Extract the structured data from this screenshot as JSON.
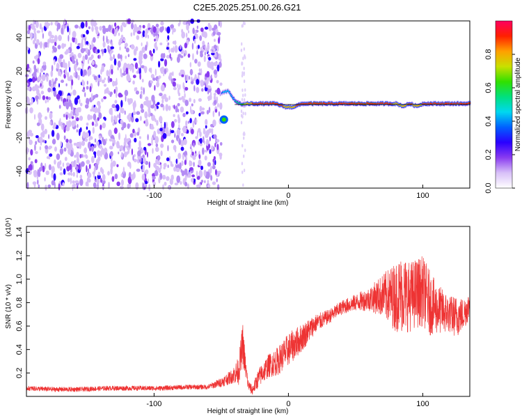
{
  "title": "C2E5.2025.251.00.26.G21",
  "chart_data": [
    {
      "type": "heatmap",
      "name": "spectrogram",
      "xlabel": "Height of straight line (km)",
      "ylabel": "Frequency (Hz)",
      "xlim": [
        -195,
        135
      ],
      "ylim": [
        -50,
        50
      ],
      "xticks": [
        -100,
        0,
        100
      ],
      "yticks": [
        -40,
        -20,
        0,
        20,
        40
      ],
      "colorbar": {
        "label": "Normalized spectral amplitude",
        "range": [
          0,
          1
        ],
        "ticks": [
          0.0,
          0.2,
          0.4,
          0.6,
          0.8
        ],
        "colors": [
          "#ffffff",
          "#d8c0f8",
          "#8a3cf0",
          "#2a00ff",
          "#0060ff",
          "#00d8f0",
          "#00e080",
          "#30e000",
          "#c8e000",
          "#ffa000",
          "#ff2000",
          "#ff0060"
        ]
      },
      "scatter_region": {
        "x_range": [
          -195,
          -50
        ],
        "y_range": [
          -50,
          50
        ],
        "typical_amplitude": 0.15
      },
      "signal_track": {
        "x": [
          -50,
          -45,
          -40,
          -35,
          -30,
          -20,
          -10,
          -2,
          3,
          10,
          20,
          30,
          40,
          50,
          60,
          70,
          80,
          85,
          90,
          95,
          100,
          110,
          120,
          135
        ],
        "frequency": [
          7,
          8,
          2,
          0,
          0.5,
          0.5,
          0.5,
          -1.5,
          -1.5,
          0.5,
          0.5,
          0.5,
          0.5,
          0.5,
          0.5,
          0.5,
          0.5,
          -1,
          0.5,
          -1,
          0.5,
          0.5,
          0.5,
          0.5
        ],
        "peak_amplitude": [
          0.4,
          0.45,
          0.5,
          0.6,
          0.85,
          0.9,
          0.9,
          0.85,
          0.85,
          0.9,
          0.92,
          0.9,
          0.9,
          0.92,
          0.92,
          0.9,
          0.85,
          0.8,
          0.9,
          0.8,
          0.88,
          0.9,
          0.9,
          0.9
        ]
      },
      "secondary_blob": {
        "x": -48,
        "frequency": -9,
        "amplitude": 0.4
      }
    },
    {
      "type": "line",
      "name": "snr",
      "xlabel": "Height of straight line (km)",
      "ylabel": "SNR (10 * v/v)",
      "y_multiplier": "(x10⁴)",
      "xlim": [
        -195,
        135
      ],
      "ylim": [
        0,
        1.45
      ],
      "xticks": [
        -100,
        0,
        100
      ],
      "yticks": [
        0.2,
        0.4,
        0.6,
        0.8,
        1.0,
        1.2,
        1.4
      ],
      "series": [
        {
          "name": "SNR",
          "color": "#ee3333",
          "x": [
            -195,
            -175,
            -155,
            -135,
            -115,
            -95,
            -75,
            -60,
            -50,
            -42,
            -37,
            -34,
            -32,
            -30,
            -27,
            -22,
            -15,
            -8,
            0,
            10,
            20,
            30,
            40,
            50,
            60,
            70,
            80,
            85,
            90,
            95,
            100,
            105,
            110,
            120,
            125,
            130,
            135
          ],
          "values": [
            0.07,
            0.06,
            0.06,
            0.07,
            0.07,
            0.07,
            0.08,
            0.08,
            0.12,
            0.17,
            0.22,
            0.45,
            0.25,
            0.1,
            0.05,
            0.16,
            0.26,
            0.3,
            0.4,
            0.5,
            0.62,
            0.68,
            0.76,
            0.8,
            0.83,
            0.86,
            0.85,
            0.88,
            0.85,
            0.88,
            0.9,
            0.8,
            0.75,
            0.7,
            0.68,
            0.7,
            0.78
          ],
          "spread": [
            0.02,
            0.02,
            0.02,
            0.02,
            0.02,
            0.02,
            0.02,
            0.02,
            0.04,
            0.06,
            0.12,
            0.18,
            0.1,
            0.05,
            0.04,
            0.08,
            0.1,
            0.12,
            0.14,
            0.12,
            0.08,
            0.06,
            0.06,
            0.07,
            0.1,
            0.18,
            0.3,
            0.34,
            0.3,
            0.3,
            0.3,
            0.28,
            0.22,
            0.16,
            0.18,
            0.14,
            0.12
          ]
        }
      ]
    }
  ]
}
